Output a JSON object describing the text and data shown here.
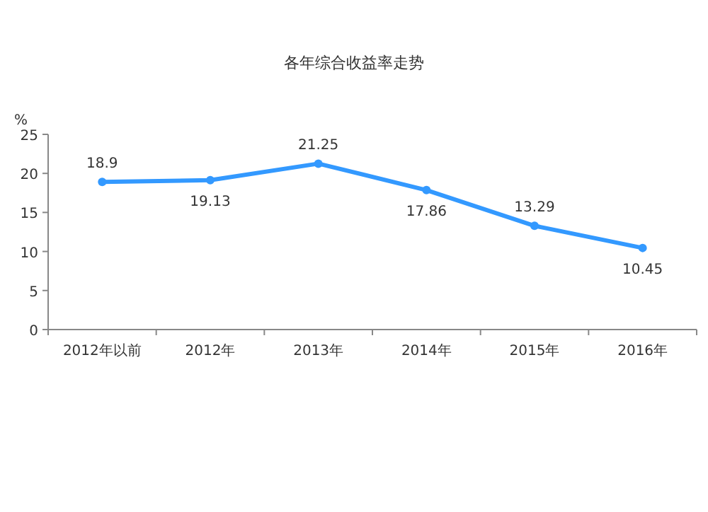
{
  "chart_data": {
    "type": "line",
    "title": "各年综合收益率走势",
    "ylabel": "%",
    "categories": [
      "2012年以前",
      "2012年",
      "2013年",
      "2014年",
      "2015年",
      "2016年"
    ],
    "series": [
      {
        "color": "#3399ff",
        "values": [
          18.9,
          19.13,
          21.25,
          17.86,
          13.29,
          10.45
        ]
      }
    ],
    "ylim": [
      0,
      25
    ],
    "yticks": [
      0,
      5,
      10,
      15,
      20,
      25
    ],
    "data_labels": true,
    "marker": "circle",
    "line_style": "solid"
  }
}
